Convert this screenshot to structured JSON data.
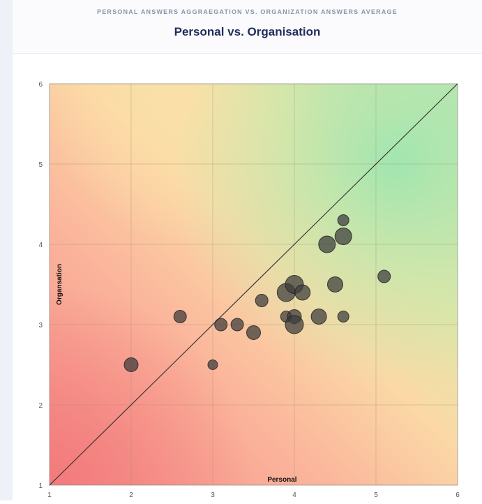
{
  "header": {
    "supertitle": "PERSONAL ANSWERS AGGRAEGATION VS. ORGANIZATION ANSWERS AVERAGE",
    "title": "Personal vs. Organisation"
  },
  "chart_data": {
    "type": "scatter",
    "title": "Personal vs. Organisation",
    "xlabel": "Personal",
    "ylabel": "Organsation",
    "xlim": [
      1,
      6
    ],
    "ylim": [
      1,
      6
    ],
    "xticks": [
      1,
      2,
      3,
      4,
      5,
      6
    ],
    "yticks": [
      1,
      2,
      3,
      4,
      5,
      6
    ],
    "grid": true,
    "background": "gradient red (bottom-left) to orange/yellow to green (top-right)",
    "reference_line": {
      "from": [
        1,
        1
      ],
      "to": [
        6,
        6
      ]
    },
    "points": [
      {
        "x": 2.0,
        "y": 2.5,
        "size": 10
      },
      {
        "x": 3.0,
        "y": 2.5,
        "size": 7
      },
      {
        "x": 2.6,
        "y": 3.1,
        "size": 9
      },
      {
        "x": 3.1,
        "y": 3.0,
        "size": 9
      },
      {
        "x": 3.3,
        "y": 3.0,
        "size": 9
      },
      {
        "x": 3.5,
        "y": 2.9,
        "size": 10
      },
      {
        "x": 3.6,
        "y": 3.3,
        "size": 9
      },
      {
        "x": 3.9,
        "y": 3.1,
        "size": 8
      },
      {
        "x": 3.9,
        "y": 3.4,
        "size": 13
      },
      {
        "x": 4.0,
        "y": 3.5,
        "size": 13
      },
      {
        "x": 4.1,
        "y": 3.4,
        "size": 11
      },
      {
        "x": 4.0,
        "y": 3.1,
        "size": 10
      },
      {
        "x": 4.0,
        "y": 3.0,
        "size": 13
      },
      {
        "x": 4.3,
        "y": 3.1,
        "size": 11
      },
      {
        "x": 4.5,
        "y": 3.5,
        "size": 11
      },
      {
        "x": 4.6,
        "y": 3.1,
        "size": 8
      },
      {
        "x": 4.4,
        "y": 4.0,
        "size": 12
      },
      {
        "x": 4.6,
        "y": 4.1,
        "size": 12
      },
      {
        "x": 4.6,
        "y": 4.3,
        "size": 8
      },
      {
        "x": 5.1,
        "y": 3.6,
        "size": 9
      }
    ]
  },
  "colors": {
    "point_fill": "#3a3a3a",
    "point_stroke": "#1e1e1e",
    "grid": "#9c8f70",
    "diagonal": "#2e2e2e",
    "title": "#1f2d5a",
    "supertitle": "#8a96ad"
  }
}
